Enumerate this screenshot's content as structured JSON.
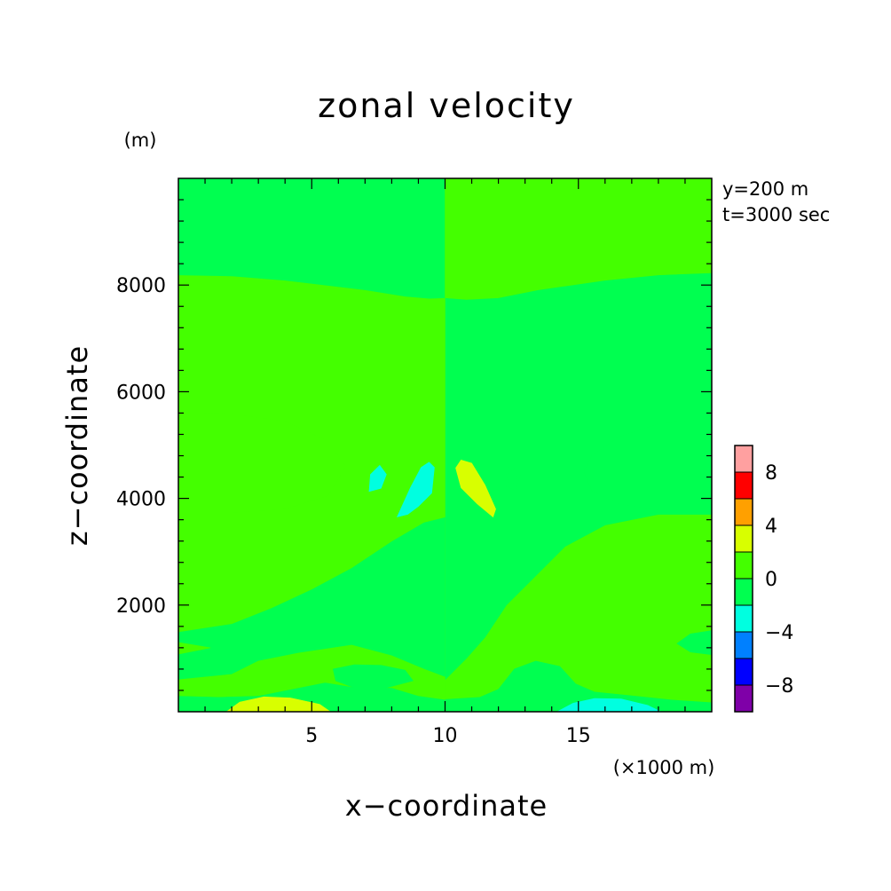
{
  "chart_data": {
    "type": "heatmap",
    "title": "zonal velocity",
    "xlabel": "x−coordinate",
    "ylabel": "z−coordinate",
    "x_unit": "(×1000 m)",
    "y_unit": "(m)",
    "annotations": [
      "y=200 m",
      "t=3000 sec"
    ],
    "xlim": [
      0,
      20
    ],
    "ylim": [
      0,
      10000
    ],
    "x_ticks": [
      {
        "value": 5,
        "label": "5"
      },
      {
        "value": 10,
        "label": "10"
      },
      {
        "value": 15,
        "label": "15"
      }
    ],
    "y_ticks": [
      {
        "value": 2000,
        "label": "2000"
      },
      {
        "value": 4000,
        "label": "4000"
      },
      {
        "value": 6000,
        "label": "6000"
      },
      {
        "value": 8000,
        "label": "8000"
      }
    ],
    "x_minor_step": 1,
    "y_minor_step": 400,
    "colorbar": {
      "levels": [
        {
          "min": -10,
          "max": -8,
          "color": "#7f00a8"
        },
        {
          "min": -8,
          "max": -6,
          "color": "#0000ff"
        },
        {
          "min": -6,
          "max": -4,
          "color": "#0080ff"
        },
        {
          "min": -4,
          "max": -2,
          "color": "#00ffe0"
        },
        {
          "min": -2,
          "max": 0,
          "color": "#00ff50"
        },
        {
          "min": 0,
          "max": 2,
          "color": "#44ff00"
        },
        {
          "min": 2,
          "max": 4,
          "color": "#d8ff00"
        },
        {
          "min": 4,
          "max": 6,
          "color": "#ffa000"
        },
        {
          "min": 6,
          "max": 8,
          "color": "#ff0000"
        },
        {
          "min": 8,
          "max": 10,
          "color": "#ffa0a0"
        }
      ],
      "tick_labels": [
        {
          "value": 8,
          "label": "8"
        },
        {
          "value": 4,
          "label": "4"
        },
        {
          "value": 0,
          "label": "0"
        },
        {
          "value": -4,
          "label": "−4"
        },
        {
          "value": -8,
          "label": "−8"
        }
      ]
    },
    "regions": [
      {
        "level": 0,
        "points": [
          [
            0,
            10000
          ],
          [
            10,
            10000
          ],
          [
            10,
            0
          ],
          [
            0,
            0
          ]
        ]
      },
      {
        "level": 1,
        "points": [
          [
            10,
            10000
          ],
          [
            20,
            10000
          ],
          [
            20,
            0
          ],
          [
            10,
            0
          ]
        ]
      },
      {
        "level": 0,
        "points": [
          [
            10,
            7750
          ],
          [
            10.8,
            7720
          ],
          [
            12,
            7750
          ],
          [
            13.5,
            7900
          ],
          [
            16,
            8080
          ],
          [
            18,
            8180
          ],
          [
            20,
            8220
          ],
          [
            20,
            3700
          ],
          [
            18,
            3700
          ],
          [
            16,
            3500
          ],
          [
            14.5,
            3100
          ],
          [
            13.3,
            2500
          ],
          [
            12.3,
            2000
          ],
          [
            11.5,
            1400
          ],
          [
            10.8,
            1000
          ],
          [
            10,
            600
          ]
        ]
      },
      {
        "level": 0,
        "points": [
          [
            20,
            5500
          ],
          [
            18,
            5400
          ],
          [
            16.5,
            5150
          ],
          [
            15.5,
            4800
          ],
          [
            15.2,
            4500
          ],
          [
            15.5,
            4150
          ],
          [
            16.5,
            3900
          ],
          [
            18,
            3780
          ],
          [
            20,
            3750
          ]
        ]
      },
      {
        "level": 0,
        "points": [
          [
            20,
            1520
          ],
          [
            19.2,
            1460
          ],
          [
            18.7,
            1280
          ],
          [
            19.2,
            1120
          ],
          [
            20,
            1070
          ]
        ]
      },
      {
        "level": 0,
        "points": [
          [
            10,
            230
          ],
          [
            11.3,
            270
          ],
          [
            12,
            420
          ],
          [
            12.6,
            800
          ],
          [
            13.4,
            950
          ],
          [
            14.3,
            850
          ],
          [
            14.9,
            520
          ],
          [
            15.6,
            370
          ],
          [
            17,
            300
          ],
          [
            18.5,
            220
          ],
          [
            20,
            170
          ],
          [
            20,
            0
          ],
          [
            10,
            0
          ]
        ]
      },
      {
        "level": 1,
        "points": [
          [
            0,
            8180
          ],
          [
            2,
            8160
          ],
          [
            4,
            8080
          ],
          [
            7,
            7900
          ],
          [
            8.5,
            7780
          ],
          [
            9.4,
            7740
          ],
          [
            10,
            7750
          ],
          [
            10,
            3650
          ],
          [
            9.2,
            3550
          ],
          [
            8,
            3200
          ],
          [
            6.5,
            2700
          ],
          [
            5,
            2300
          ],
          [
            3.5,
            1950
          ],
          [
            2,
            1650
          ],
          [
            0,
            1500
          ],
          [
            0,
            5590
          ],
          [
            2,
            5580
          ],
          [
            4,
            5450
          ],
          [
            5.5,
            5100
          ],
          [
            6.3,
            4600
          ],
          [
            5.6,
            4050
          ],
          [
            4,
            3800
          ],
          [
            2,
            3730
          ],
          [
            0,
            3730
          ]
        ]
      },
      {
        "level": 1,
        "points": [
          [
            0,
            1300
          ],
          [
            1.2,
            1200
          ],
          [
            0,
            1080
          ]
        ]
      },
      {
        "level": 1,
        "points": [
          [
            0,
            600
          ],
          [
            2,
            700
          ],
          [
            3,
            950
          ],
          [
            4.5,
            1100
          ],
          [
            6.5,
            1250
          ],
          [
            8,
            1050
          ],
          [
            9.2,
            800
          ],
          [
            10,
            650
          ],
          [
            10,
            230
          ],
          [
            9,
            300
          ],
          [
            8,
            450
          ],
          [
            6.5,
            470
          ],
          [
            5.5,
            550
          ],
          [
            4.5,
            450
          ],
          [
            3,
            300
          ],
          [
            1.5,
            280
          ],
          [
            0,
            300
          ]
        ]
      },
      {
        "level": 0,
        "points": [
          [
            5.8,
            800
          ],
          [
            6.6,
            880
          ],
          [
            7.6,
            870
          ],
          [
            8.5,
            780
          ],
          [
            8.8,
            580
          ],
          [
            7.8,
            450
          ],
          [
            6.6,
            450
          ],
          [
            5.9,
            580
          ]
        ]
      },
      {
        "level": 2,
        "points": [
          [
            1.8,
            0
          ],
          [
            2.3,
            180
          ],
          [
            3.2,
            280
          ],
          [
            4.2,
            260
          ],
          [
            5.3,
            140
          ],
          [
            5.7,
            0
          ]
        ]
      },
      {
        "level": 3,
        "points": [
          [
            14.2,
            0
          ],
          [
            14.8,
            160
          ],
          [
            15.6,
            250
          ],
          [
            16.6,
            240
          ],
          [
            17.6,
            120
          ],
          [
            18.1,
            0
          ]
        ]
      },
      {
        "level": 3,
        "points": [
          [
            8.2,
            3650
          ],
          [
            8.7,
            4200
          ],
          [
            9.1,
            4580
          ],
          [
            9.4,
            4680
          ],
          [
            9.6,
            4580
          ],
          [
            9.5,
            4100
          ],
          [
            9.0,
            3850
          ],
          [
            8.6,
            3700
          ]
        ]
      },
      {
        "level": 6,
        "points": [
          [
            10.4,
            4570
          ],
          [
            10.6,
            4720
          ],
          [
            11.0,
            4660
          ],
          [
            11.5,
            4250
          ],
          [
            11.9,
            3800
          ],
          [
            11.8,
            3650
          ],
          [
            11.2,
            3900
          ],
          [
            10.6,
            4200
          ]
        ]
      },
      {
        "level": 3,
        "points": [
          [
            7.15,
            4130
          ],
          [
            7.2,
            4450
          ],
          [
            7.55,
            4620
          ],
          [
            7.8,
            4450
          ],
          [
            7.6,
            4190
          ]
        ]
      },
      {
        "level": 4,
        "points": [
          [
            12.2,
            4520
          ],
          [
            12.6,
            4650
          ],
          [
            12.85,
            4450
          ],
          [
            12.65,
            4150
          ],
          [
            12.3,
            4220
          ]
        ]
      },
      {
        "level": 4,
        "points": [
          [
            12.3,
            4450
          ],
          [
            12.6,
            4560
          ],
          [
            12.7,
            4400
          ],
          [
            12.55,
            4280
          ],
          [
            12.4,
            4300
          ]
        ]
      }
    ]
  }
}
